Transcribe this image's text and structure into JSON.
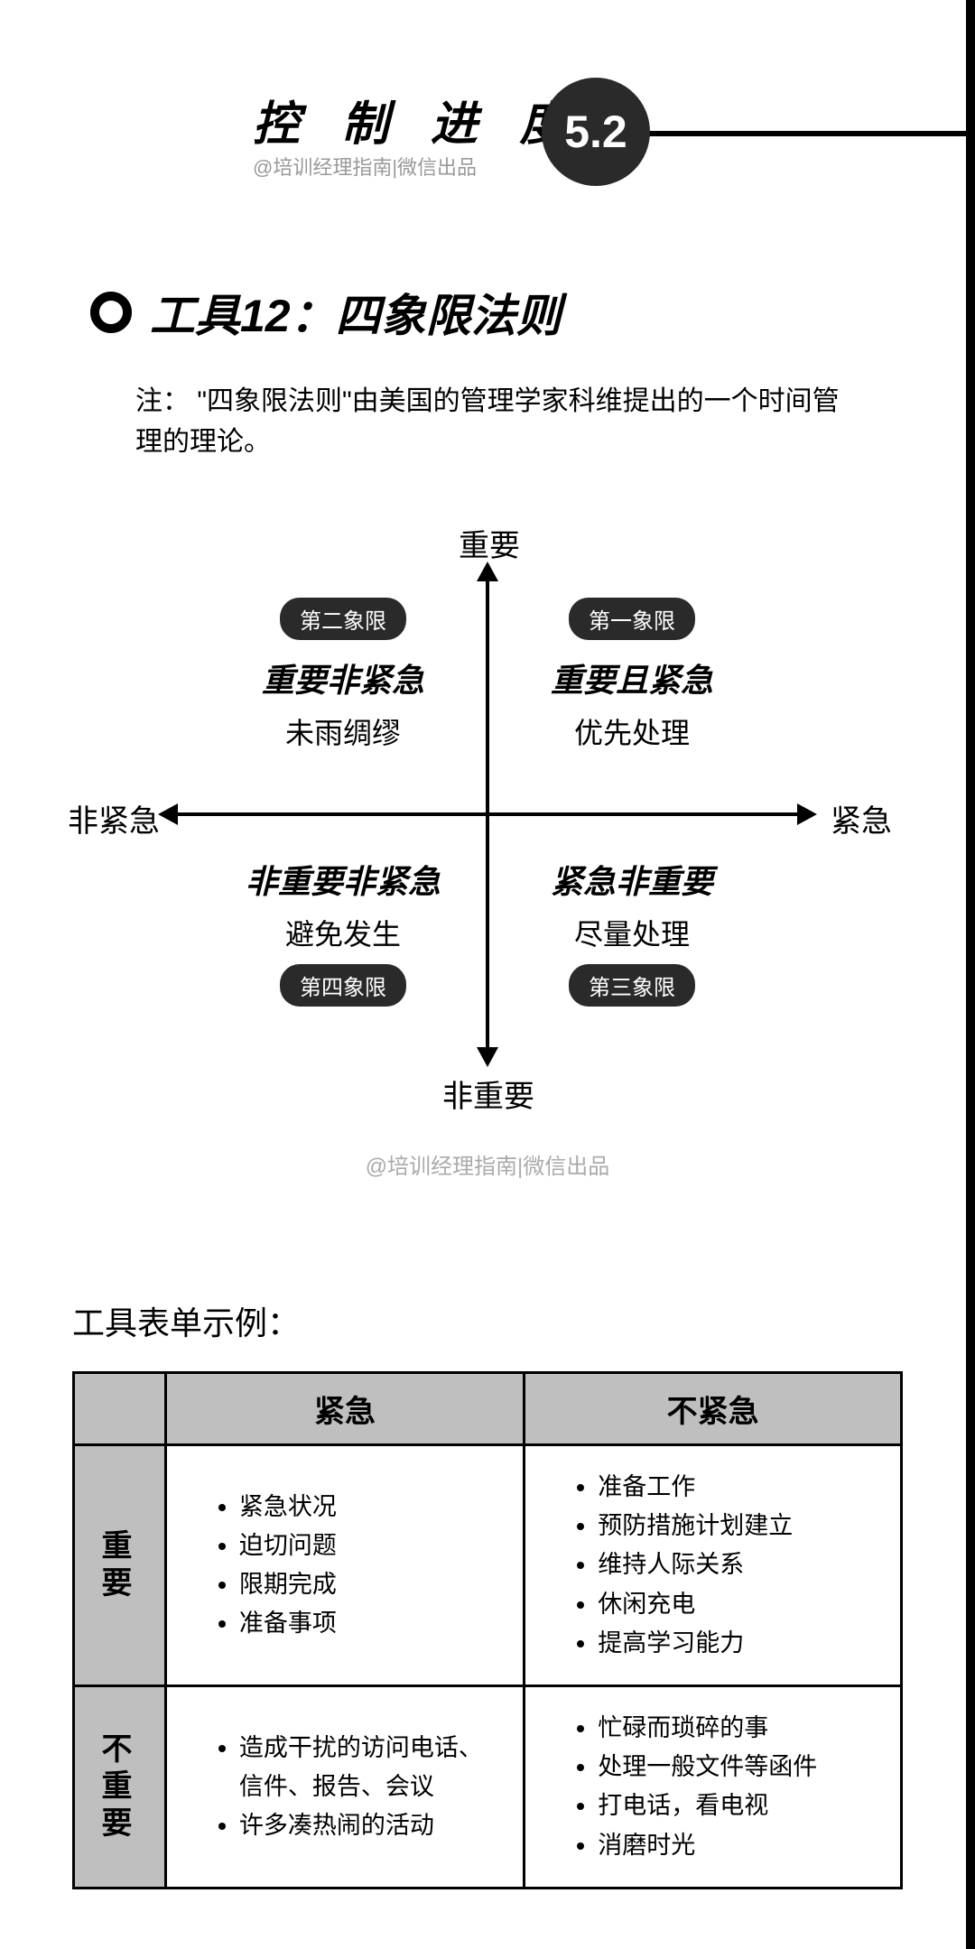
{
  "header": {
    "title": "控 制 进 度",
    "subtitle": "@培训经理指南|微信出品",
    "badge": "5.2"
  },
  "section": {
    "title": "工具12：四象限法则",
    "note": "注： \"四象限法则\"由美国的管理学家科维提出的一个时间管理的理论。"
  },
  "diagram": {
    "axis": {
      "top": "重要",
      "bottom": "非重要",
      "left": "非紧急",
      "right": "紧急"
    },
    "q2": {
      "pill": "第二象限",
      "title": "重要非紧急",
      "sub": "未雨绸缪"
    },
    "q1": {
      "pill": "第一象限",
      "title": "重要且紧急",
      "sub": "优先处理"
    },
    "q4": {
      "pill": "第四象限",
      "title": "非重要非紧急",
      "sub": "避免发生"
    },
    "q3": {
      "pill": "第三象限",
      "title": "紧急非重要",
      "sub": "尽量处理"
    }
  },
  "watermark": "@培训经理指南|微信出品",
  "table": {
    "heading": "工具表单示例：",
    "col_urgent": "紧急",
    "col_not_urgent": "不紧急",
    "row_important": "重要",
    "row_not_important": "不重要",
    "cells": {
      "iu": [
        "紧急状况",
        "迫切问题",
        "限期完成",
        "准备事项"
      ],
      "inu": [
        "准备工作",
        "预防措施计划建立",
        "维持人际关系",
        "休闲充电",
        "提高学习能力"
      ],
      "niu": [
        "造成干扰的访问电话、信件、报告、会议",
        "许多凑热闹的活动"
      ],
      "ninu": [
        "忙碌而琐碎的事",
        "处理一般文件等函件",
        "打电话，看电视",
        "消磨时光"
      ]
    }
  },
  "colors": {
    "bg": "#ffffff",
    "text": "#000000",
    "badge_bg": "#2a2a2a",
    "badge_text": "#ffffff",
    "pill_bg": "#2a2a2a",
    "grey_header": "#bfbfbf",
    "watermark": "#aaaaaa",
    "subtitle": "#999999"
  }
}
